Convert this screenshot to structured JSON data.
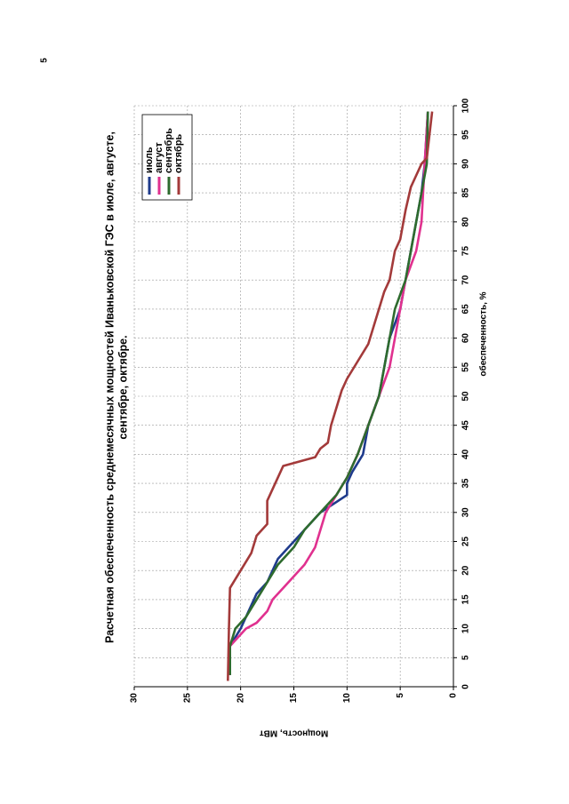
{
  "page_number": "5",
  "chart_data": {
    "type": "line",
    "title": [
      "Расчетная обеспеченность среднемесячных мощностей Иваньковской ГЭС в июле, августе,",
      "сентябре, октябре."
    ],
    "x_label": "обеспеченность, %",
    "y_label": "Мощность, МВт",
    "xlim": [
      0,
      100
    ],
    "xticks": [
      0,
      5,
      10,
      15,
      20,
      25,
      30,
      35,
      40,
      45,
      50,
      55,
      60,
      65,
      70,
      75,
      80,
      85,
      90,
      95,
      100
    ],
    "ylim": [
      0,
      30
    ],
    "yticks": [
      0,
      5,
      10,
      15,
      20,
      25,
      30
    ],
    "grid": true,
    "legend": "upper right",
    "series": [
      {
        "name": "июль",
        "color": "#1f3b8c",
        "x": [
          2,
          7,
          10,
          12,
          14,
          16,
          18,
          20,
          22,
          24,
          26,
          28,
          30,
          33,
          35,
          37,
          40,
          45,
          50,
          55,
          60,
          65,
          70,
          75,
          80,
          85,
          90,
          99
        ],
        "values": [
          21,
          21,
          20,
          19.5,
          19,
          18.5,
          17.5,
          17,
          16.5,
          15.5,
          14.5,
          13.5,
          12.5,
          10,
          10,
          9.5,
          8.5,
          8,
          7,
          6.5,
          6,
          5,
          4.5,
          4,
          3.5,
          3,
          2.7,
          2.4
        ]
      },
      {
        "name": "август",
        "color": "#e0318f",
        "x": [
          2,
          7,
          10,
          11,
          13,
          15,
          17,
          19,
          21,
          24,
          27,
          30,
          33,
          36,
          40,
          45,
          50,
          55,
          60,
          65,
          70,
          75,
          80,
          90,
          99
        ],
        "values": [
          21,
          21,
          19.5,
          18.5,
          17.5,
          17,
          16,
          15,
          14,
          13,
          12.5,
          12,
          11,
          10,
          9,
          8,
          7,
          6,
          5.5,
          5,
          4.5,
          3.5,
          3,
          2.7,
          2.4
        ]
      },
      {
        "name": "сентябрь",
        "color": "#2e6b2e",
        "x": [
          2,
          7,
          10,
          12,
          15,
          18,
          21,
          24,
          27,
          30,
          33,
          36,
          40,
          45,
          50,
          55,
          60,
          65,
          70,
          75,
          80,
          90,
          99
        ],
        "values": [
          21,
          21,
          20.5,
          19.5,
          18.5,
          17.5,
          16.5,
          15,
          14,
          12.5,
          11,
          10,
          9,
          8,
          7,
          6.5,
          6,
          5.5,
          4.5,
          4,
          3.5,
          2.5,
          2.4
        ]
      },
      {
        "name": "октябрь",
        "color": "#a33a3a",
        "x": [
          1,
          10,
          17,
          20,
          23,
          26,
          28,
          32,
          36,
          38,
          39.5,
          41,
          42,
          45,
          48,
          51,
          53,
          56,
          59,
          62,
          65,
          68,
          70,
          75,
          77,
          82,
          86,
          88,
          90,
          91,
          99
        ],
        "values": [
          21.2,
          21.1,
          21,
          20,
          19,
          18.5,
          17.5,
          17.5,
          16.5,
          16,
          13,
          12.5,
          11.8,
          11.5,
          11,
          10.5,
          10,
          9,
          8,
          7.5,
          7,
          6.5,
          6,
          5.5,
          5,
          4.5,
          4,
          3.5,
          3,
          2.5,
          2
        ]
      }
    ]
  }
}
